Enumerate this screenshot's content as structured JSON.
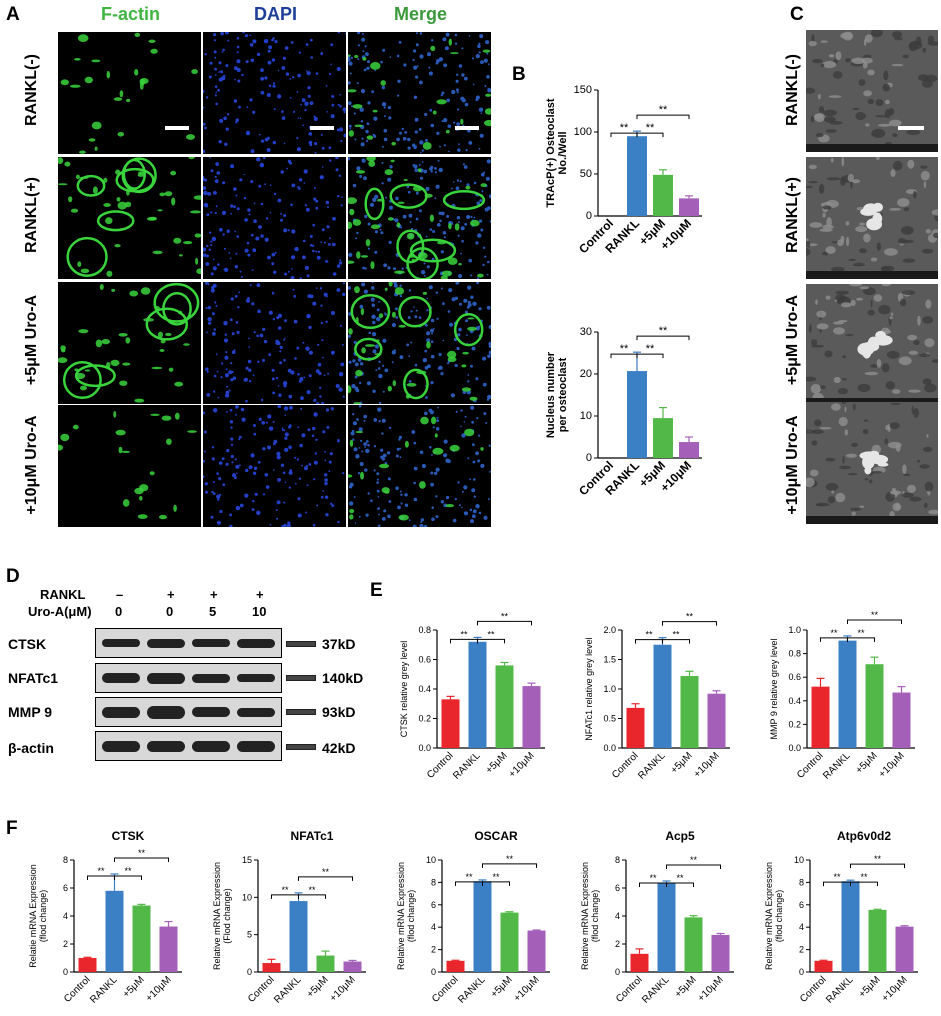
{
  "panels": {
    "A": "A",
    "B": "B",
    "C": "C",
    "D": "D",
    "E": "E",
    "F": "F"
  },
  "panelA": {
    "columns": [
      "F-actin",
      "DAPI",
      "Merge"
    ],
    "rows": [
      "RANKL(-)",
      "RANKL(+)",
      "+5μM Uro-A",
      "+10μM Uro-A"
    ],
    "colors": {
      "factin": "#3fb63f",
      "dapi": "#1d3f9a",
      "merge": "#3a9a3a"
    }
  },
  "panelC": {
    "rows": [
      "RANKL(-)",
      "RANKL(+)",
      "+5μM Uro-A",
      "+10μM Uro-A"
    ]
  },
  "panelD": {
    "rankl_label": "RANKL",
    "uro_label": "Uro-A(μM)",
    "rankl_values": [
      "–",
      "+",
      "+",
      "+"
    ],
    "uro_values": [
      "0",
      "0",
      "5",
      "10"
    ],
    "proteins": [
      "CTSK",
      "NFATc1",
      "MMP 9",
      "β-actin"
    ],
    "sizes": [
      "37kD",
      "140kD",
      "93kD",
      "42kD"
    ]
  },
  "colors": {
    "control": "#e8262b",
    "rankl": "#3b7fc4",
    "uro5": "#52b848",
    "uro10": "#a460b8"
  },
  "chart_data": [
    {
      "id": "B1",
      "type": "bar",
      "categories": [
        "Control",
        "RANKL",
        "+5μM",
        "+10μM"
      ],
      "values": [
        0,
        95,
        49,
        21
      ],
      "errors": [
        0,
        6,
        6,
        3
      ],
      "ylabel": "TRAcP(+) Osteoclast No./Well",
      "ylim": [
        0,
        150
      ],
      "yticks": [
        0,
        50,
        100,
        150
      ],
      "sig": "**"
    },
    {
      "id": "B2",
      "type": "bar",
      "categories": [
        "Control",
        "RANKL",
        "+5μM",
        "+10μM"
      ],
      "values": [
        0,
        20.7,
        9.5,
        3.8
      ],
      "errors": [
        0,
        4.5,
        2.5,
        1.2
      ],
      "ylabel": "Nucleus number per osteoclast",
      "ylim": [
        0,
        30
      ],
      "yticks": [
        0,
        10,
        20,
        30
      ],
      "sig": "**"
    },
    {
      "id": "E1",
      "type": "bar",
      "categories": [
        "Control",
        "RANKL",
        "+5μM",
        "+10μM"
      ],
      "values": [
        0.33,
        0.72,
        0.56,
        0.42
      ],
      "errors": [
        0.02,
        0.03,
        0.02,
        0.02
      ],
      "ylabel": "CTSK relative grey level",
      "ylim": [
        0,
        0.8
      ],
      "yticks": [
        0,
        0.2,
        0.4,
        0.6,
        0.8
      ],
      "tickLabels": [
        "0.0",
        "0.2",
        "0.4",
        "0.6",
        "0.8"
      ],
      "sig": "**"
    },
    {
      "id": "E2",
      "type": "bar",
      "categories": [
        "Control",
        "RANKL",
        "+5μM",
        "+10μM"
      ],
      "values": [
        0.68,
        1.75,
        1.22,
        0.92
      ],
      "errors": [
        0.07,
        0.12,
        0.08,
        0.05
      ],
      "ylabel": "NFATc1 relative grey level",
      "ylim": [
        0,
        2.0
      ],
      "yticks": [
        0,
        0.5,
        1.0,
        1.5,
        2.0
      ],
      "tickLabels": [
        "0.0",
        "0.5",
        "1.0",
        "1.5",
        "2.0"
      ],
      "sig": "**"
    },
    {
      "id": "E3",
      "type": "bar",
      "categories": [
        "Control",
        "RANKL",
        "+5μM",
        "+10μM"
      ],
      "values": [
        0.52,
        0.91,
        0.71,
        0.47
      ],
      "errors": [
        0.07,
        0.04,
        0.06,
        0.05
      ],
      "ylabel": "MMP 9 relative grey level",
      "ylim": [
        0,
        1.0
      ],
      "yticks": [
        0,
        0.2,
        0.4,
        0.6,
        0.8,
        1.0
      ],
      "tickLabels": [
        "0.0",
        "0.2",
        "0.4",
        "0.6",
        "0.8",
        "1.0"
      ],
      "sig": "**"
    },
    {
      "id": "F1",
      "type": "bar",
      "title": "CTSK",
      "categories": [
        "Control",
        "RANKL",
        "+5μM",
        "+10μM"
      ],
      "values": [
        1.0,
        5.8,
        4.75,
        3.25
      ],
      "errors": [
        0.05,
        1.2,
        0.08,
        0.35
      ],
      "ylabel": "Relatie mRNA Expression (flod change)",
      "ylim": [
        0,
        8
      ],
      "yticks": [
        0,
        2,
        4,
        6,
        8
      ],
      "sig": "**"
    },
    {
      "id": "F2",
      "type": "bar",
      "title": "NFATc1",
      "categories": [
        "Control",
        "RANKL",
        "+5μM",
        "+10μM"
      ],
      "values": [
        1.2,
        9.5,
        2.2,
        1.4
      ],
      "errors": [
        0.5,
        1.1,
        0.6,
        0.15
      ],
      "ylabel": "Relative mRNA Expression (Flod change)",
      "ylim": [
        0,
        15
      ],
      "yticks": [
        0,
        5,
        10,
        15
      ],
      "sig": "**"
    },
    {
      "id": "F3",
      "type": "bar",
      "title": "OSCAR",
      "categories": [
        "Control",
        "RANKL",
        "+5μM",
        "+10μM"
      ],
      "values": [
        1.0,
        8.1,
        5.3,
        3.7
      ],
      "errors": [
        0.05,
        0.12,
        0.08,
        0.05
      ],
      "ylabel": "Relative mRNA Expression (flod change)",
      "ylim": [
        0,
        10
      ],
      "yticks": [
        0,
        2,
        4,
        6,
        8,
        10
      ],
      "sig": "**"
    },
    {
      "id": "F4",
      "type": "bar",
      "title": "Acp5",
      "categories": [
        "Control",
        "RANKL",
        "+5μM",
        "+10μM"
      ],
      "values": [
        1.3,
        6.35,
        3.9,
        2.65
      ],
      "errors": [
        0.35,
        0.15,
        0.12,
        0.1
      ],
      "ylabel": "Relative mRNA Expression (flod change)",
      "ylim": [
        0,
        8
      ],
      "yticks": [
        0,
        2,
        4,
        6,
        8
      ],
      "sig": "**"
    },
    {
      "id": "F5",
      "type": "bar",
      "title": "Atp6v0d2",
      "categories": [
        "Control",
        "RANKL",
        "+5μM",
        "+10μM"
      ],
      "values": [
        1.0,
        8.1,
        5.55,
        4.05
      ],
      "errors": [
        0.05,
        0.1,
        0.05,
        0.08
      ],
      "ylabel": "Relative mRNA Expression (flod change)",
      "ylim": [
        0,
        10
      ],
      "yticks": [
        0,
        2,
        4,
        6,
        8,
        10
      ],
      "sig": "**"
    }
  ]
}
